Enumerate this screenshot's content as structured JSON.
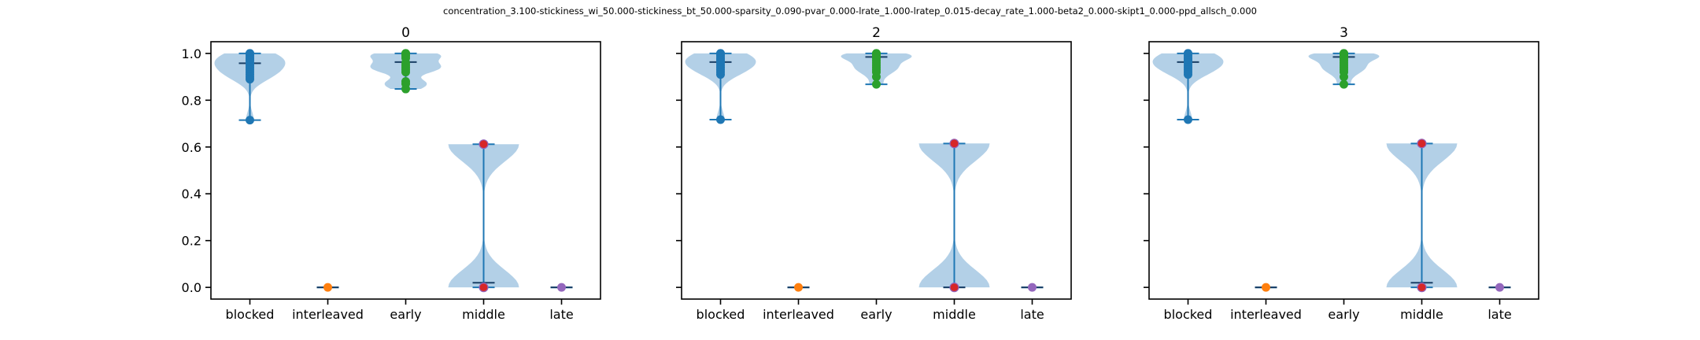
{
  "suptitle": "concentration_3.100-stickiness_wi_50.000-stickiness_bt_50.000-sparsity_0.090-pvar_0.000-lrate_1.000-lratep_0.015-decay_rate_1.000-beta2_0.000-skipt1_0.000-ppd_allsch_0.000",
  "colors": {
    "violin_fill": "#a6c8e3",
    "line": "#1f77b4",
    "categories": [
      "#1f77b4",
      "#ff7f0e",
      "#2ca02c",
      "#d62728",
      "#9467bd"
    ]
  },
  "chart_data": [
    {
      "type": "violin",
      "title": "0",
      "categories": [
        "blocked",
        "interleaved",
        "early",
        "middle",
        "late"
      ],
      "ylim": [
        -0.05,
        1.05
      ],
      "yticks": [
        "0.0",
        "0.2",
        "0.4",
        "0.6",
        "0.8",
        "1.0"
      ],
      "show_ytick_labels": true,
      "violins": [
        {
          "min": 0.715,
          "max": 1.0,
          "median": 0.958,
          "points": [
            1.0,
            1.0,
            0.99,
            0.98,
            0.975,
            0.97,
            0.96,
            0.95,
            0.94,
            0.93,
            0.92,
            0.91,
            0.9,
            0.89,
            0.715
          ]
        },
        {
          "min": 0.0,
          "max": 0.0,
          "median": 0.0,
          "points": [
            0.0
          ]
        },
        {
          "min": 0.848,
          "max": 1.0,
          "median": 0.963,
          "points": [
            1.0,
            1.0,
            0.99,
            0.98,
            0.96,
            0.95,
            0.94,
            0.93,
            0.92,
            0.88,
            0.87,
            0.848
          ]
        },
        {
          "min": 0.0,
          "max": 0.612,
          "median": 0.02,
          "points": [
            0.612,
            0.0
          ]
        },
        {
          "min": 0.0,
          "max": 0.0,
          "median": 0.0,
          "points": [
            0.0
          ]
        }
      ]
    },
    {
      "type": "violin",
      "title": "2",
      "categories": [
        "blocked",
        "interleaved",
        "early",
        "middle",
        "late"
      ],
      "ylim": [
        -0.05,
        1.05
      ],
      "yticks": [
        "0.0",
        "0.2",
        "0.4",
        "0.6",
        "0.8",
        "1.0"
      ],
      "show_ytick_labels": false,
      "violins": [
        {
          "min": 0.717,
          "max": 1.0,
          "median": 0.963,
          "points": [
            1.0,
            1.0,
            0.99,
            0.98,
            0.975,
            0.97,
            0.96,
            0.95,
            0.94,
            0.93,
            0.92,
            0.91,
            0.717
          ]
        },
        {
          "min": 0.0,
          "max": 0.0,
          "median": 0.0,
          "points": [
            0.0
          ]
        },
        {
          "min": 0.868,
          "max": 1.0,
          "median": 0.985,
          "points": [
            1.0,
            1.0,
            0.995,
            0.99,
            0.985,
            0.98,
            0.97,
            0.96,
            0.95,
            0.94,
            0.93,
            0.92,
            0.9,
            0.868
          ]
        },
        {
          "min": 0.0,
          "max": 0.615,
          "median": 0.0,
          "points": [
            0.615,
            0.0
          ]
        },
        {
          "min": 0.0,
          "max": 0.0,
          "median": 0.0,
          "points": [
            0.0
          ]
        }
      ]
    },
    {
      "type": "violin",
      "title": "3",
      "categories": [
        "blocked",
        "interleaved",
        "early",
        "middle",
        "late"
      ],
      "ylim": [
        -0.05,
        1.05
      ],
      "yticks": [
        "0.0",
        "0.2",
        "0.4",
        "0.6",
        "0.8",
        "1.0"
      ],
      "show_ytick_labels": false,
      "violins": [
        {
          "min": 0.717,
          "max": 1.0,
          "median": 0.963,
          "points": [
            1.0,
            1.0,
            0.99,
            0.98,
            0.975,
            0.97,
            0.96,
            0.95,
            0.94,
            0.93,
            0.92,
            0.91,
            0.717
          ]
        },
        {
          "min": 0.0,
          "max": 0.0,
          "median": 0.0,
          "points": [
            0.0
          ]
        },
        {
          "min": 0.868,
          "max": 1.0,
          "median": 0.985,
          "points": [
            1.0,
            1.0,
            0.995,
            0.99,
            0.985,
            0.98,
            0.97,
            0.96,
            0.95,
            0.94,
            0.93,
            0.92,
            0.9,
            0.868
          ]
        },
        {
          "min": 0.0,
          "max": 0.615,
          "median": 0.02,
          "points": [
            0.615,
            0.0
          ]
        },
        {
          "min": 0.0,
          "max": 0.0,
          "median": 0.0,
          "points": [
            0.0
          ]
        }
      ]
    }
  ]
}
